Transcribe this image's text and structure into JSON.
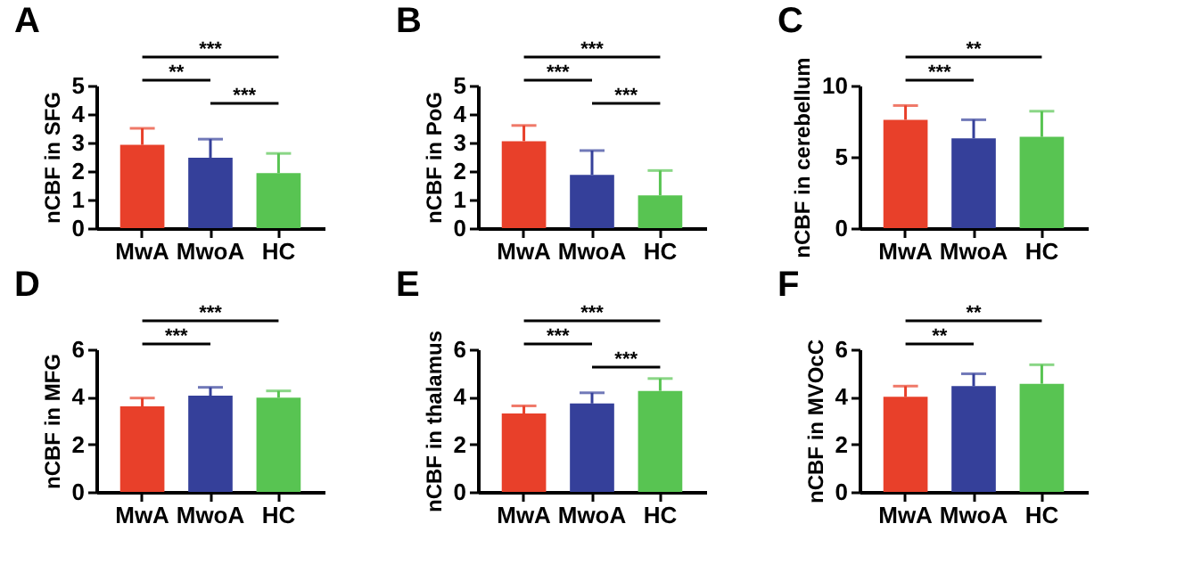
{
  "chart_data": [
    {
      "type": "bar",
      "title": "A",
      "ylabel": "nCBF in SFG",
      "categories": [
        "MwA",
        "MwoA",
        "HC"
      ],
      "values": [
        2.92,
        2.47,
        1.93
      ],
      "errors": [
        [
          2.92,
          3.5
        ],
        [
          2.47,
          3.12
        ],
        [
          1.93,
          2.62
        ]
      ],
      "colors": [
        "#e8402a",
        "#35409a",
        "#58c452"
      ],
      "ylim": [
        0,
        5
      ],
      "yticks": [
        0,
        1,
        2,
        3,
        4,
        5
      ],
      "annotations": [
        "***",
        "**",
        "***"
      ]
    },
    {
      "type": "bar",
      "title": "B",
      "ylabel": "nCBF in PoG",
      "categories": [
        "MwA",
        "MwoA",
        "HC"
      ],
      "values": [
        3.05,
        1.87,
        1.15
      ],
      "errors": [
        [
          3.05,
          3.6
        ],
        [
          1.87,
          2.72
        ],
        [
          1.15,
          2.02
        ]
      ],
      "colors": [
        "#e8402a",
        "#35409a",
        "#58c452"
      ],
      "ylim": [
        0,
        5
      ],
      "yticks": [
        0,
        1,
        2,
        3,
        4,
        5
      ],
      "annotations": [
        "***",
        "***",
        "***"
      ]
    },
    {
      "type": "bar",
      "title": "C",
      "ylabel": "nCBF in cerebellum",
      "categories": [
        "MwA",
        "MwoA",
        "HC"
      ],
      "values": [
        7.6,
        6.3,
        6.4
      ],
      "errors": [
        [
          7.6,
          8.6
        ],
        [
          6.3,
          7.6
        ],
        [
          6.4,
          8.2
        ]
      ],
      "colors": [
        "#e8402a",
        "#35409a",
        "#58c452"
      ],
      "ylim": [
        0,
        10
      ],
      "yticks": [
        0,
        5,
        10
      ],
      "annotations": [
        "**",
        "***"
      ]
    },
    {
      "type": "bar",
      "title": "D",
      "ylabel": "nCBF in MFG",
      "categories": [
        "MwA",
        "MwoA",
        "HC"
      ],
      "values": [
        3.6,
        4.05,
        3.97
      ],
      "errors": [
        [
          3.6,
          3.95
        ],
        [
          4.05,
          4.4
        ],
        [
          3.97,
          4.25
        ]
      ],
      "colors": [
        "#e8402a",
        "#35409a",
        "#58c452"
      ],
      "ylim": [
        0,
        6
      ],
      "yticks": [
        0,
        2,
        4,
        6
      ],
      "annotations": [
        "***",
        "***"
      ]
    },
    {
      "type": "bar",
      "title": "E",
      "ylabel": "nCBF in thalamus",
      "categories": [
        "MwA",
        "MwoA",
        "HC"
      ],
      "values": [
        3.3,
        3.72,
        4.25
      ],
      "errors": [
        [
          3.3,
          3.62
        ],
        [
          3.72,
          4.17
        ],
        [
          4.25,
          4.77
        ]
      ],
      "colors": [
        "#e8402a",
        "#35409a",
        "#58c452"
      ],
      "ylim": [
        0,
        6
      ],
      "yticks": [
        0,
        2,
        4,
        6
      ],
      "annotations": [
        "***",
        "***",
        "***"
      ]
    },
    {
      "type": "bar",
      "title": "F",
      "ylabel": "nCBF in MVOcC",
      "categories": [
        "MwA",
        "MwoA",
        "HC"
      ],
      "values": [
        4.0,
        4.45,
        4.55
      ],
      "errors": [
        [
          4.0,
          4.45
        ],
        [
          4.45,
          4.97
        ],
        [
          4.55,
          5.35
        ]
      ],
      "colors": [
        "#e8402a",
        "#35409a",
        "#58c452"
      ],
      "ylim": [
        0,
        6
      ],
      "yticks": [
        0,
        2,
        4,
        6
      ],
      "annotations": [
        "**",
        "**"
      ]
    }
  ]
}
